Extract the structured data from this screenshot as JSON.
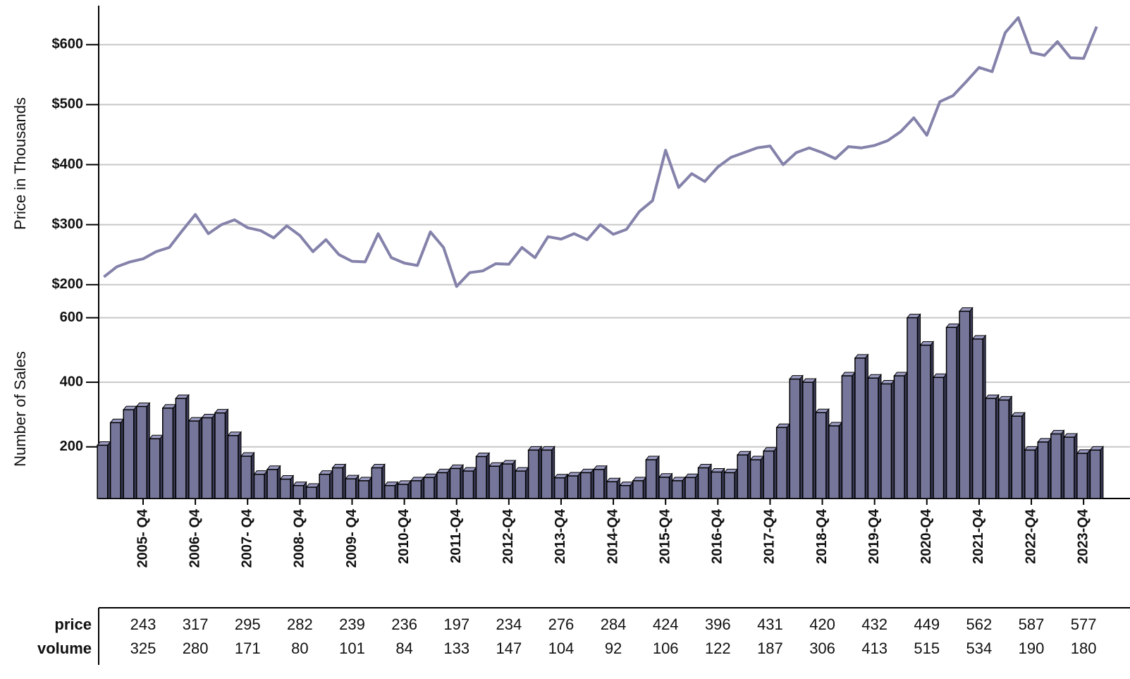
{
  "chart_data": {
    "type": "combo",
    "ylabel": "Price in Thousands",
    "y2label": "Number of Sales",
    "categories": [
      null,
      null,
      null,
      "2005- Q4",
      null,
      null,
      null,
      "2006- Q4",
      null,
      null,
      null,
      "2007- Q4",
      null,
      null,
      null,
      "2008- Q4",
      null,
      null,
      null,
      "2009- Q4",
      null,
      null,
      null,
      "2010-Q4",
      null,
      null,
      null,
      "2011-Q4",
      null,
      null,
      null,
      "2012-Q4",
      null,
      null,
      null,
      "2013-Q4",
      null,
      null,
      null,
      "2014-Q4",
      null,
      null,
      null,
      "2015-Q4",
      null,
      null,
      null,
      "2016-Q4",
      null,
      null,
      null,
      "2017-Q4",
      null,
      null,
      null,
      "2018-Q4",
      null,
      null,
      null,
      "2019-Q4",
      null,
      null,
      null,
      "2020-Q4",
      null,
      null,
      null,
      "2021-Q4",
      null,
      null,
      null,
      "2022-Q4",
      null,
      null,
      null,
      "2023-Q4",
      null
    ],
    "ylim": [
      195,
      665
    ],
    "yticks": [
      {
        "value": 200,
        "label": "$200"
      },
      {
        "value": 300,
        "label": "$300"
      },
      {
        "value": 400,
        "label": "$400"
      },
      {
        "value": 500,
        "label": "$500"
      },
      {
        "value": 600,
        "label": "$600"
      }
    ],
    "y2lim": [
      40,
      645
    ],
    "y2ticks": [
      200,
      400,
      600
    ],
    "grid": true,
    "series": [
      {
        "name": "price",
        "type": "line",
        "color": "#8482aa",
        "values": [
          213,
          230,
          238,
          243,
          255,
          262,
          290,
          317,
          285,
          300,
          308,
          295,
          290,
          278,
          298,
          282,
          255,
          275,
          250,
          239,
          238,
          285,
          245,
          236,
          232,
          288,
          262,
          197,
          220,
          223,
          235,
          234,
          262,
          245,
          280,
          276,
          285,
          275,
          300,
          284,
          292,
          322,
          340,
          424,
          362,
          385,
          372,
          396,
          412,
          420,
          428,
          431,
          400,
          420,
          428,
          420,
          410,
          430,
          428,
          432,
          440,
          455,
          478,
          449,
          505,
          515,
          538,
          562,
          555,
          620,
          645,
          587,
          582,
          605,
          578,
          577,
          630
        ]
      },
      {
        "name": "volume",
        "type": "bar",
        "axis": "y2",
        "color": "#76769a",
        "values": [
          205,
          275,
          315,
          325,
          225,
          320,
          350,
          280,
          290,
          305,
          235,
          171,
          115,
          130,
          100,
          80,
          75,
          115,
          135,
          101,
          95,
          135,
          80,
          84,
          95,
          105,
          120,
          133,
          125,
          170,
          140,
          147,
          125,
          190,
          190,
          104,
          110,
          120,
          130,
          92,
          80,
          95,
          160,
          106,
          95,
          105,
          135,
          122,
          120,
          175,
          160,
          187,
          260,
          410,
          400,
          306,
          265,
          420,
          475,
          413,
          395,
          420,
          600,
          515,
          415,
          570,
          620,
          534,
          350,
          345,
          295,
          190,
          215,
          240,
          230,
          180,
          190
        ]
      }
    ]
  }
}
